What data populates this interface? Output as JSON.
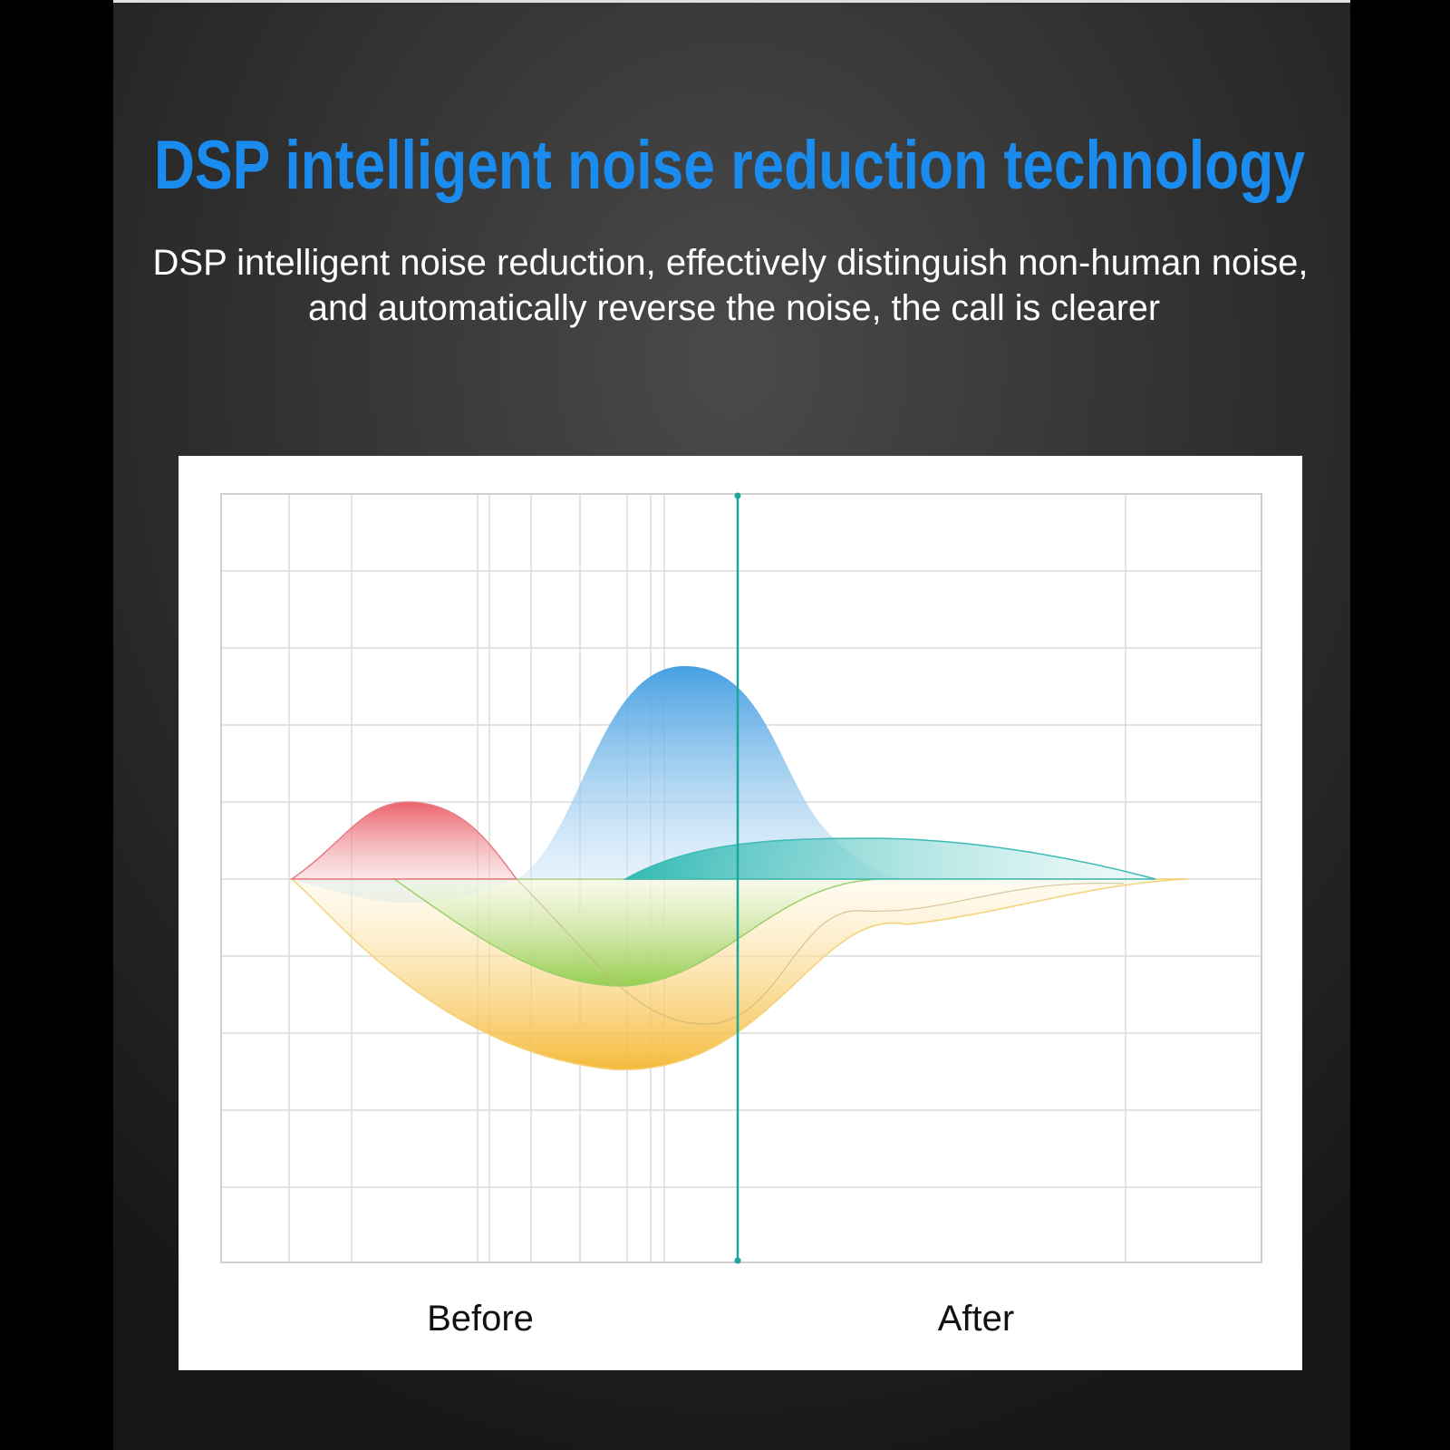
{
  "header": {
    "title": "DSP intelligent noise reduction technology"
  },
  "description": {
    "lines": [
      "DSP intelligent noise reduction, effectively distinguish non-human noise,",
      "and automatically reverse the noise, the call is clearer"
    ]
  },
  "diagram": {
    "labels": [
      "Before",
      "After"
    ]
  }
}
